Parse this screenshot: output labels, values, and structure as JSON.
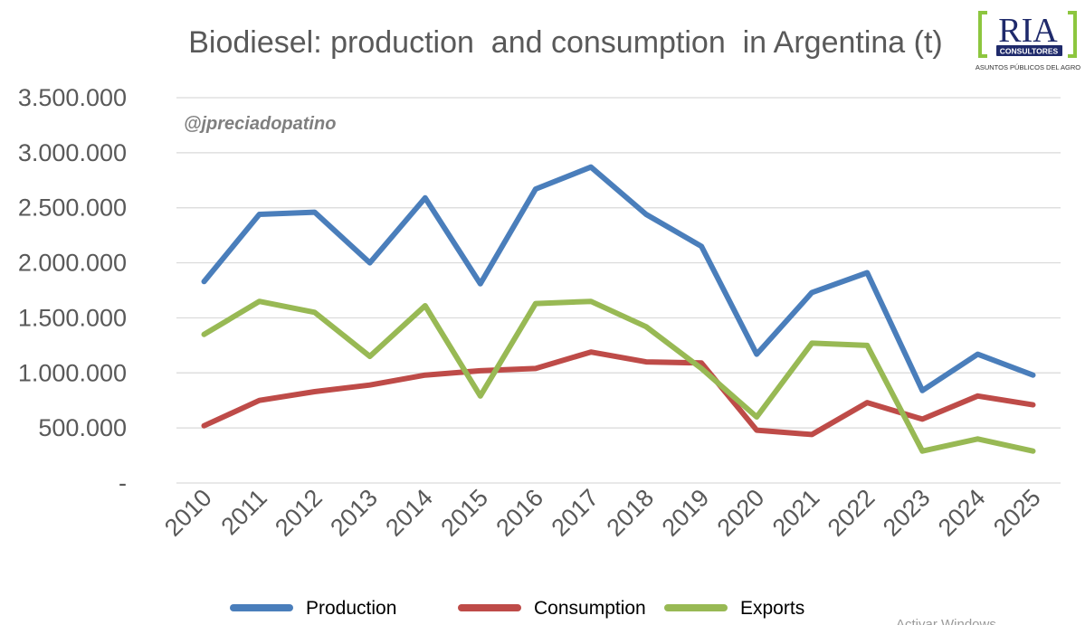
{
  "chart_data": {
    "type": "line",
    "title": "Biodiesel: production  and consumption  in Argentina (t)",
    "annotation": "@jpreciadopatino",
    "xlabel": "",
    "ylabel": "",
    "ylim": [
      0,
      3500000
    ],
    "y_ticks": [
      0,
      500000,
      1000000,
      1500000,
      2000000,
      2500000,
      3000000,
      3500000
    ],
    "y_tick_labels": [
      "-",
      "500.000",
      "1.000.000",
      "1.500.000",
      "2.000.000",
      "2.500.000",
      "3.000.000",
      "3.500.000"
    ],
    "categories": [
      "2010",
      "2011",
      "2012",
      "2013",
      "2014",
      "2015",
      "2016",
      "2017",
      "2018",
      "2019",
      "2020",
      "2021",
      "2022",
      "2023",
      "2024",
      "2025"
    ],
    "grid": true,
    "legend_position": "bottom",
    "series": [
      {
        "name": "Production",
        "color": "#4a7ebb",
        "values": [
          1830000,
          2440000,
          2460000,
          2000000,
          2590000,
          1810000,
          2670000,
          2870000,
          2440000,
          2150000,
          1170000,
          1730000,
          1910000,
          840000,
          1170000,
          980000
        ]
      },
      {
        "name": "Consumption",
        "color": "#be4b48",
        "values": [
          520000,
          750000,
          830000,
          890000,
          980000,
          1020000,
          1040000,
          1190000,
          1100000,
          1090000,
          480000,
          440000,
          730000,
          580000,
          790000,
          710000
        ]
      },
      {
        "name": "Exports",
        "color": "#98b954",
        "values": [
          1350000,
          1650000,
          1550000,
          1150000,
          1610000,
          790000,
          1630000,
          1650000,
          1420000,
          1040000,
          600000,
          1270000,
          1250000,
          290000,
          400000,
          290000
        ]
      }
    ]
  },
  "logo": {
    "name": "RIA",
    "tag": "CONSULTORES",
    "sub": "ASUNTOS PÚBLICOS DEL AGRO",
    "accent": "#8dc63f",
    "navy": "#1f2a6b"
  },
  "system_overlay": {
    "text": "Activar Windows"
  }
}
